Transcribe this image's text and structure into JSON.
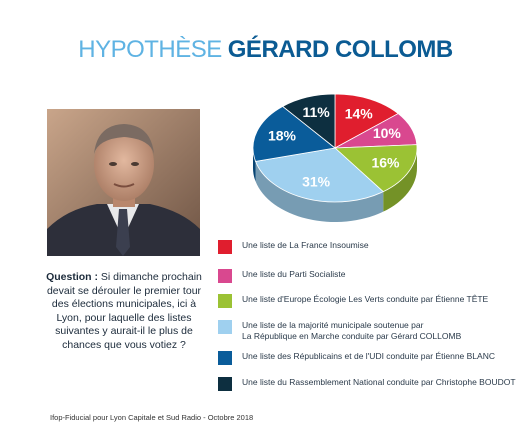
{
  "title": {
    "light": "HYPOTHÈSE",
    "bold": "GÉRARD COLLOMB"
  },
  "question": {
    "label": "Question :",
    "text": "Si dimanche prochain devait se dérouler le premier tour des élections municipales, ici à Lyon, pour laquelle des listes suivantes y aurait-il le plus de chances que vous votiez ?"
  },
  "source": "Ifop-Fiducial pour Lyon Capitale et Sud Radio - Octobre 2018",
  "chart_data": {
    "type": "pie",
    "categories": [
      "Une liste de La France Insoumise",
      "Une liste du Parti Socialiste",
      "Une liste d'Europe Écologie Les Verts conduite par Étienne TÊTE",
      "Une liste de la majorité municipale soutenue par\nLa République en Marche conduite par Gérard COLLOMB",
      "Une liste des Républicains et de l'UDI conduite par Étienne BLANC",
      "Une liste du Rassemblement National conduite par Christophe BOUDOT"
    ],
    "values": [
      14,
      10,
      16,
      31,
      18,
      11
    ],
    "labels": [
      "14%",
      "10%",
      "16%",
      "31%",
      "18%",
      "11%"
    ],
    "colors": [
      "#e01e2e",
      "#d9488f",
      "#9bc234",
      "#9fd0ef",
      "#0a5c9a",
      "#0d2f40"
    ],
    "legend_position": "bottom"
  }
}
